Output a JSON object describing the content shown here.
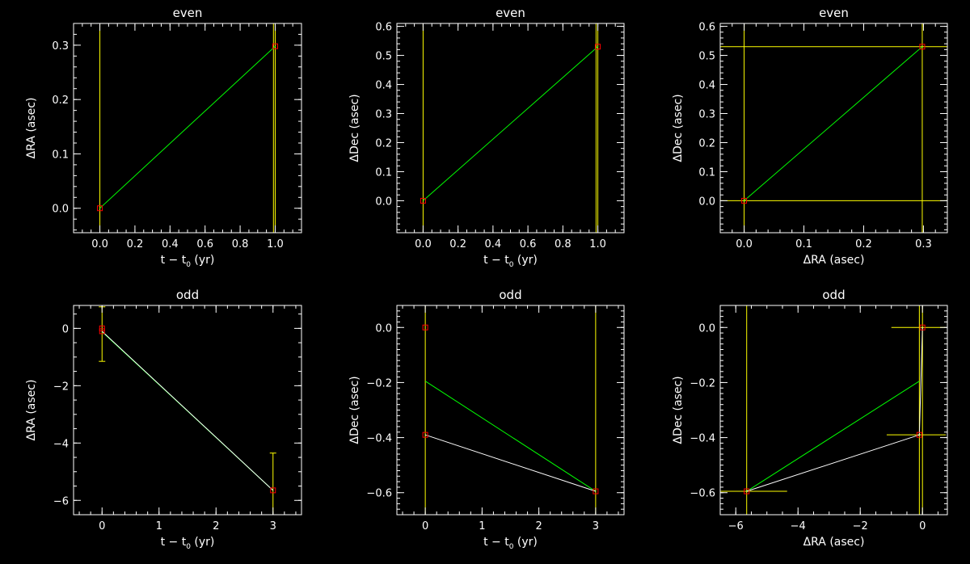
{
  "colors": {
    "background": "#000000",
    "axes": "#ffffff",
    "error_bars": "#ffff00",
    "fit_line": "#00ff00",
    "data_line": "#ffffff",
    "markers": "#ff0000"
  },
  "chart_data": [
    {
      "type": "scatter",
      "title": "even",
      "xlabel": "t − t",
      "xlabel_sub": "0",
      "xlabel_suffix": " (yr)",
      "ylabel": "ΔRA (asec)",
      "xlim": [
        -0.15,
        1.15
      ],
      "ylim": [
        -0.045,
        0.34
      ],
      "xticks": [
        0.0,
        0.2,
        0.4,
        0.6,
        0.8,
        1.0
      ],
      "xtick_labels": [
        "0.0",
        "0.2",
        "0.4",
        "0.6",
        "0.8",
        "1.0"
      ],
      "xminor_step": 0.05,
      "yticks": [
        0.0,
        0.1,
        0.2,
        0.3
      ],
      "ytick_labels": [
        "0.0",
        "0.1",
        "0.2",
        "0.3"
      ],
      "yminor_step": 0.02,
      "points": [
        {
          "x": 0,
          "y": 0
        },
        {
          "x": 1,
          "y": 0.298
        }
      ],
      "fit_line": [
        {
          "x": 0,
          "y": 0
        },
        {
          "x": 1,
          "y": 0.298
        }
      ],
      "data_line": [],
      "xerr_bars": [],
      "yerr_bars": [
        {
          "x": 0,
          "lo": -0.045,
          "hi": 0.34
        },
        {
          "x": 1,
          "lo": -0.045,
          "hi": 0.34
        },
        {
          "x": 0.99,
          "lo": -0.045,
          "hi": 0.34
        }
      ]
    },
    {
      "type": "scatter",
      "title": "even",
      "xlabel": "t − t",
      "xlabel_sub": "0",
      "xlabel_suffix": " (yr)",
      "ylabel": "ΔDec (asec)",
      "xlim": [
        -0.15,
        1.15
      ],
      "ylim": [
        -0.11,
        0.61
      ],
      "xticks": [
        0.0,
        0.2,
        0.4,
        0.6,
        0.8,
        1.0
      ],
      "xtick_labels": [
        "0.0",
        "0.2",
        "0.4",
        "0.6",
        "0.8",
        "1.0"
      ],
      "xminor_step": 0.05,
      "yticks": [
        0.0,
        0.1,
        0.2,
        0.3,
        0.4,
        0.5,
        0.6
      ],
      "ytick_labels": [
        "0.0",
        "0.1",
        "0.2",
        "0.3",
        "0.4",
        "0.5",
        "0.6"
      ],
      "yminor_step": 0.02,
      "points": [
        {
          "x": 0,
          "y": 0
        },
        {
          "x": 1,
          "y": 0.53
        }
      ],
      "fit_line": [
        {
          "x": 0,
          "y": 0
        },
        {
          "x": 1,
          "y": 0.53
        }
      ],
      "data_line": [],
      "xerr_bars": [],
      "yerr_bars": [
        {
          "x": 0,
          "lo": -0.11,
          "hi": 0.61
        },
        {
          "x": 1,
          "lo": -0.11,
          "hi": 0.61
        },
        {
          "x": 0.99,
          "lo": -0.11,
          "hi": 0.61
        }
      ]
    },
    {
      "type": "scatter",
      "title": "even",
      "xlabel": "ΔRA (asec)",
      "xlabel_sub": "",
      "xlabel_suffix": "",
      "ylabel": "ΔDec (asec)",
      "xlim": [
        -0.04,
        0.34
      ],
      "ylim": [
        -0.11,
        0.61
      ],
      "xticks": [
        0.0,
        0.1,
        0.2,
        0.3
      ],
      "xtick_labels": [
        "0.0",
        "0.1",
        "0.2",
        "0.3"
      ],
      "xminor_step": 0.02,
      "yticks": [
        0.0,
        0.1,
        0.2,
        0.3,
        0.4,
        0.5,
        0.6
      ],
      "ytick_labels": [
        "0.0",
        "0.1",
        "0.2",
        "0.3",
        "0.4",
        "0.5",
        "0.6"
      ],
      "yminor_step": 0.02,
      "points": [
        {
          "x": 0,
          "y": 0
        },
        {
          "x": 0.298,
          "y": 0.53
        }
      ],
      "fit_line": [
        {
          "x": 0,
          "y": 0
        },
        {
          "x": 0.298,
          "y": 0.53
        }
      ],
      "data_line": [],
      "xerr_bars": [
        {
          "y": 0,
          "lo": -0.04,
          "hi": 0.34
        },
        {
          "y": 0.53,
          "lo": -0.04,
          "hi": 0.34
        }
      ],
      "yerr_bars": [
        {
          "x": 0,
          "lo": -0.11,
          "hi": 0.61
        },
        {
          "x": 0.298,
          "lo": -0.11,
          "hi": 0.61
        }
      ]
    },
    {
      "type": "scatter",
      "title": "odd",
      "xlabel": "t − t",
      "xlabel_sub": "0",
      "xlabel_suffix": " (yr)",
      "ylabel": "ΔRA (asec)",
      "xlim": [
        -0.5,
        3.5
      ],
      "ylim": [
        -6.5,
        0.8
      ],
      "xticks": [
        0,
        1,
        2,
        3
      ],
      "xtick_labels": [
        "0",
        "1",
        "2",
        "3"
      ],
      "xminor_step": 0.2,
      "yticks": [
        0,
        -2,
        -4,
        -6
      ],
      "ytick_labels": [
        "0",
        "−2",
        "−4",
        "−6"
      ],
      "yminor_step": 0.5,
      "points": [
        {
          "x": 0,
          "y": 0
        },
        {
          "x": 0,
          "y": -0.1
        },
        {
          "x": 3,
          "y": -5.65
        }
      ],
      "fit_line": [
        {
          "x": 0,
          "y": -0.12
        },
        {
          "x": 3,
          "y": -5.65
        }
      ],
      "data_line": [
        {
          "x": 0,
          "y": -0.1
        },
        {
          "x": 3,
          "y": -5.65
        }
      ],
      "xerr_bars": [],
      "yerr_bars": [
        {
          "x": 0,
          "lo": -1.15,
          "hi": 0.75
        },
        {
          "x": 3,
          "lo": -6.5,
          "hi": -4.35
        }
      ]
    },
    {
      "type": "scatter",
      "title": "odd",
      "xlabel": "t − t",
      "xlabel_sub": "0",
      "xlabel_suffix": " (yr)",
      "ylabel": "ΔDec (asec)",
      "xlim": [
        -0.5,
        3.5
      ],
      "ylim": [
        -0.68,
        0.08
      ],
      "xticks": [
        0,
        1,
        2,
        3
      ],
      "xtick_labels": [
        "0",
        "1",
        "2",
        "3"
      ],
      "xminor_step": 0.2,
      "yticks": [
        0.0,
        -0.2,
        -0.4,
        -0.6
      ],
      "ytick_labels": [
        "0.0",
        "−0.2",
        "−0.4",
        "−0.6"
      ],
      "yminor_step": 0.02,
      "points": [
        {
          "x": 0,
          "y": 0
        },
        {
          "x": 0,
          "y": -0.39
        },
        {
          "x": 3,
          "y": -0.595
        }
      ],
      "fit_line": [
        {
          "x": 0,
          "y": -0.195
        },
        {
          "x": 3,
          "y": -0.595
        }
      ],
      "data_line": [
        {
          "x": 0,
          "y": -0.39
        },
        {
          "x": 3,
          "y": -0.595
        }
      ],
      "xerr_bars": [],
      "yerr_bars": [
        {
          "x": 0,
          "lo": -0.68,
          "hi": 0.08
        },
        {
          "x": 3,
          "lo": -0.68,
          "hi": 0.08
        }
      ]
    },
    {
      "type": "scatter",
      "title": "odd",
      "xlabel": "ΔRA (asec)",
      "xlabel_sub": "",
      "xlabel_suffix": "",
      "ylabel": "ΔDec (asec)",
      "xlim": [
        -6.5,
        0.8
      ],
      "ylim": [
        -0.68,
        0.08
      ],
      "xticks": [
        -6,
        -4,
        -2,
        0
      ],
      "xtick_labels": [
        "−6",
        "−4",
        "−2",
        "0"
      ],
      "xminor_step": 0.5,
      "yticks": [
        0.0,
        -0.2,
        -0.4,
        -0.6
      ],
      "ytick_labels": [
        "0.0",
        "−0.2",
        "−0.4",
        "−0.6"
      ],
      "yminor_step": 0.02,
      "points": [
        {
          "x": 0,
          "y": 0
        },
        {
          "x": -0.1,
          "y": -0.39
        },
        {
          "x": -5.65,
          "y": -0.595
        }
      ],
      "fit_line": [
        {
          "x": -5.65,
          "y": -0.595
        },
        {
          "x": -0.1,
          "y": -0.195
        }
      ],
      "data_line": [
        {
          "x": -5.65,
          "y": -0.595
        },
        {
          "x": -0.1,
          "y": -0.39
        },
        {
          "x": 0,
          "y": 0
        }
      ],
      "xerr_bars": [
        {
          "y": 0,
          "lo": -1.0,
          "hi": 0.75
        },
        {
          "y": -0.39,
          "lo": -1.15,
          "hi": 0.75
        },
        {
          "y": -0.595,
          "lo": -6.5,
          "hi": -4.35
        }
      ],
      "yerr_bars": [
        {
          "x": -5.65,
          "lo": -0.68,
          "hi": 0.08
        },
        {
          "x": -0.1,
          "lo": -0.68,
          "hi": 0.08
        },
        {
          "x": 0,
          "lo": -0.68,
          "hi": 0.08
        }
      ]
    }
  ]
}
